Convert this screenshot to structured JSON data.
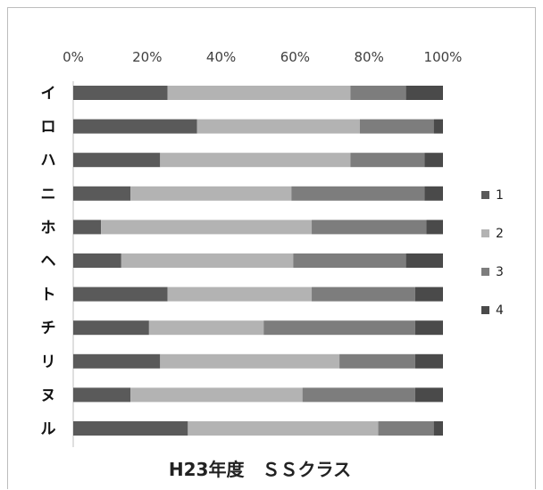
{
  "chart_data": {
    "type": "bar",
    "orientation": "horizontal",
    "stacked": "percent",
    "title": "H23年度　ＳＳクラス",
    "x_ticks": [
      "0%",
      "20%",
      "40%",
      "60%",
      "80%",
      "100%"
    ],
    "xlim": [
      0,
      100
    ],
    "categories": [
      "イ",
      "ロ",
      "ハ",
      "ニ",
      "ホ",
      "ヘ",
      "ト",
      "チ",
      "リ",
      "ヌ",
      "ル"
    ],
    "series": [
      {
        "name": "1",
        "color": "#5a5a5a",
        "values": [
          25.5,
          33.5,
          23.5,
          15.5,
          7.5,
          13,
          25.5,
          20.5,
          23.5,
          15.5,
          31
        ]
      },
      {
        "name": "2",
        "color": "#b3b3b3",
        "values": [
          49.5,
          44,
          51.5,
          43.5,
          57,
          46.5,
          39,
          31,
          48.5,
          46.5,
          51.5
        ]
      },
      {
        "name": "3",
        "color": "#7d7d7d",
        "values": [
          15,
          20,
          20,
          36,
          31,
          30.5,
          28,
          41,
          20.5,
          30.5,
          15
        ]
      },
      {
        "name": "4",
        "color": "#4a4a4a",
        "values": [
          10,
          2.5,
          5,
          5,
          4.5,
          10,
          7.5,
          7.5,
          7.5,
          7.5,
          2.5
        ]
      }
    ],
    "legend": "right",
    "grid": false
  }
}
